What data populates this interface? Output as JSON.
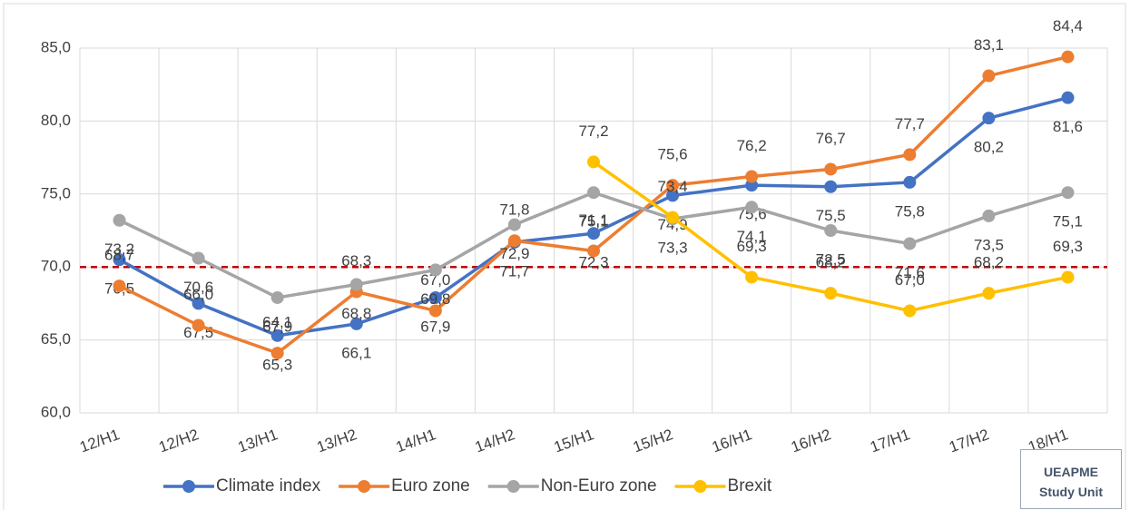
{
  "chart_data": {
    "type": "line",
    "categories": [
      "12/H1",
      "12/H2",
      "13/H1",
      "13/H2",
      "14/H1",
      "14/H2",
      "15/H1",
      "15/H2",
      "16/H1",
      "16/H2",
      "17/H1",
      "17/H2",
      "18/H1"
    ],
    "series": [
      {
        "name": "Climate index",
        "color": "#4472c4",
        "values": [
          70.5,
          67.5,
          65.3,
          66.1,
          67.9,
          71.7,
          72.3,
          74.9,
          75.6,
          75.5,
          75.8,
          80.2,
          81.6
        ],
        "value_labels": [
          "70,5",
          "67,5",
          "65,3",
          "66,1",
          "67,9",
          "71,7",
          "72,3",
          "74,9",
          "75,6",
          "75,5",
          "75,8",
          "80,2",
          "81,6"
        ]
      },
      {
        "name": "Euro zone",
        "color": "#ed7d31",
        "values": [
          68.7,
          66.0,
          64.1,
          68.3,
          67.0,
          71.8,
          71.1,
          75.6,
          76.2,
          76.7,
          77.7,
          83.1,
          84.4
        ],
        "value_labels": [
          "68,7",
          "66,0",
          "64,1",
          "68,3",
          "67,0",
          "71,8",
          "71,1",
          "75,6",
          "76,2",
          "76,7",
          "77,7",
          "83,1",
          "84,4"
        ]
      },
      {
        "name": "Non-Euro zone",
        "color": "#a5a5a5",
        "values": [
          73.2,
          70.6,
          67.9,
          68.8,
          69.8,
          72.9,
          75.1,
          73.3,
          74.1,
          72.5,
          71.6,
          73.5,
          75.1
        ],
        "value_labels": [
          "73,2",
          "70,6",
          "67,9",
          "68,8",
          "69,8",
          "72,9",
          "75,1",
          "73,3",
          "74,1",
          "72,5",
          "71,6",
          "73,5",
          "75,1"
        ]
      },
      {
        "name": "Brexit",
        "color": "#ffc000",
        "values": [
          null,
          null,
          null,
          null,
          null,
          null,
          77.2,
          73.4,
          69.3,
          68.2,
          67.0,
          68.2,
          69.3
        ],
        "value_labels": [
          null,
          null,
          null,
          null,
          null,
          null,
          "77,2",
          "73,4",
          "69,3",
          "68,2",
          "67,0",
          "68,2",
          "69,3"
        ]
      }
    ],
    "ylim": [
      60,
      85
    ],
    "yticks": [
      {
        "value": 60,
        "label": "60,0"
      },
      {
        "value": 65,
        "label": "65,0"
      },
      {
        "value": 70,
        "label": "70,0"
      },
      {
        "value": 75,
        "label": "75,0"
      },
      {
        "value": 80,
        "label": "80,0"
      },
      {
        "value": 85,
        "label": "85,0"
      }
    ],
    "reference_line": {
      "value": 70,
      "color": "#c00000"
    },
    "grid": true,
    "legend": "bottom"
  },
  "badge": {
    "lines": [
      "UEAPME",
      "Study Unit"
    ]
  }
}
